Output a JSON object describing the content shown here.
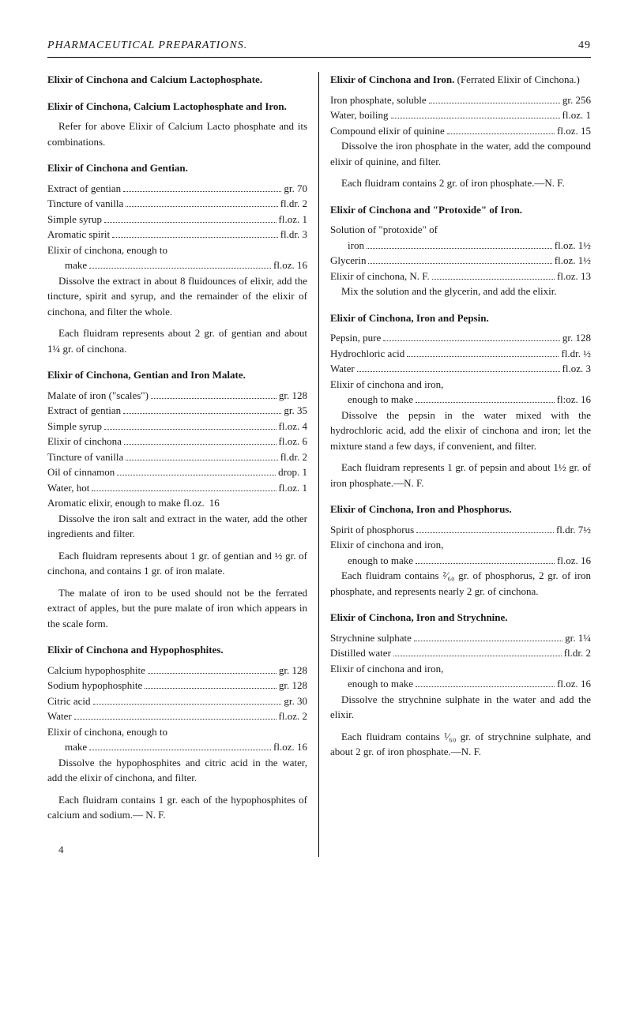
{
  "header": {
    "title": "PHARMACEUTICAL PREPARATIONS.",
    "page_number": "49"
  },
  "left": {
    "s1": {
      "title": "Elixir of Cinchona and Calcium Lactophosphate.",
      "sub": "Elixir of Cinchona, Calcium Lactophosphate and Iron.",
      "p1": "Refer for above Elixir of Calcium Lacto phosphate and its combinations."
    },
    "s2": {
      "title": "Elixir of Cinchona and Gentian.",
      "i": [
        {
          "l": "Extract of gentian",
          "a": "gr. 70"
        },
        {
          "l": "Tincture of vanilla",
          "a": "fl.dr. 2"
        },
        {
          "l": "Simple syrup",
          "a": "fl.oz. 1"
        },
        {
          "l": "Aromatic spirit",
          "a": "fl.dr. 3"
        },
        {
          "l": "Elixir of cinchona, enough to",
          "a": ""
        },
        {
          "l": "make",
          "a": "fl.oz. 16"
        }
      ],
      "p1": "Dissolve the extract in about 8 fluidounces of elixir, add the tincture, spirit and syrup, and the remainder of the elixir of cinchona, and filter the whole.",
      "p2": "Each fluidram represents about 2 gr. of gentian and about 1¼ gr. of cinchona."
    },
    "s3": {
      "title": "Elixir of Cinchona, Gentian and Iron Malate.",
      "i": [
        {
          "l": "Malate of iron (\"scales\")",
          "a": "gr. 128"
        },
        {
          "l": "Extract of gentian",
          "a": "gr. 35"
        },
        {
          "l": "Simple syrup",
          "a": "fl.oz. 4"
        },
        {
          "l": "Elixir of cinchona",
          "a": "fl.oz. 6"
        },
        {
          "l": "Tincture of vanilla",
          "a": "fl.dr. 2"
        },
        {
          "l": "Oil of cinnamon",
          "a": "drop. 1"
        },
        {
          "l": "Water, hot",
          "a": "fl.oz. 1"
        },
        {
          "l": "Aromatic elixir, enough to make fl.oz.",
          "a": "16"
        }
      ],
      "p1": "Dissolve the iron salt and extract in the water, add the other ingredients and filter.",
      "p2": "Each fluidram represents about 1 gr. of gentian and ½ gr. of cinchona, and contains 1 gr. of iron malate.",
      "p3": "The malate of iron to be used should not be the ferrated extract of apples, but the pure malate of iron which appears in the scale form."
    },
    "s4": {
      "title": "Elixir of Cinchona and Hypophosphites.",
      "i": [
        {
          "l": "Calcium hypophosphite",
          "a": "gr. 128"
        },
        {
          "l": "Sodium hypophosphite",
          "a": "gr. 128"
        },
        {
          "l": "Citric acid",
          "a": "gr. 30"
        },
        {
          "l": "Water",
          "a": "fl.oz. 2"
        },
        {
          "l": "Elixir of cinchona, enough to",
          "a": ""
        },
        {
          "l": "make",
          "a": "fl.oz. 16"
        }
      ],
      "p1": "Dissolve the hypophosphites and citric acid in the water, add the elixir of cinchona, and filter.",
      "p2": "Each fluidram contains 1 gr. each of the hypophosphites of calcium and sodium.— N. F.",
      "sig": "4"
    }
  },
  "right": {
    "s1": {
      "title_a": "Elixir of Cinchona and Iron.",
      "title_b": "(Ferrated Elixir of Cinchona.)",
      "i": [
        {
          "l": "Iron phosphate, soluble",
          "a": "gr. 256"
        },
        {
          "l": "Water, boiling",
          "a": "fl.oz. 1"
        },
        {
          "l": "Compound elixir of quinine",
          "a": "fl.oz. 15"
        }
      ],
      "p1": "Dissolve the iron phosphate in the water, add the compound elixir of quinine, and filter.",
      "p2": "Each fluidram contains 2 gr. of iron phosphate.—N. F."
    },
    "s2": {
      "title": "Elixir of Cinchona and \"Protoxide\" of Iron.",
      "i": [
        {
          "l": "Solution of \"protoxide\" of",
          "a": ""
        },
        {
          "l": "iron",
          "a": "fl.oz. 1½"
        },
        {
          "l": "Glycerin",
          "a": "fl.oz. 1½"
        },
        {
          "l": "Elixir of cinchona, N. F.",
          "a": "fl.oz. 13"
        }
      ],
      "p1": "Mix the solution and the glycerin, and add the elixir."
    },
    "s3": {
      "title": "Elixir of Cinchona, Iron and Pepsin.",
      "i": [
        {
          "l": "Pepsin, pure",
          "a": "gr. 128"
        },
        {
          "l": "Hydrochloric acid",
          "a": "fl.dr. ½"
        },
        {
          "l": "Water",
          "a": "fl.oz. 3"
        },
        {
          "l": "Elixir of cinchona and iron,",
          "a": ""
        },
        {
          "l": "enough to make",
          "a": "fl:oz. 16"
        }
      ],
      "p1": "Dissolve the pepsin in the water mixed with the hydrochloric acid, add the elixir of cinchona and iron; let the mixture stand a few days, if convenient, and filter.",
      "p2": "Each fluidram represents 1 gr. of pepsin and about 1½ gr. of iron phosphate.—N. F."
    },
    "s4": {
      "title": "Elixir of Cinchona, Iron and Phosphorus.",
      "i": [
        {
          "l": "Spirit of phosphorus",
          "a": "fl.dr. 7½"
        },
        {
          "l": "Elixir of cinchona and iron,",
          "a": ""
        },
        {
          "l": "enough to make",
          "a": "fl.oz. 16"
        }
      ],
      "p1": "Each fluidram contains ²⁄₆₀ gr. of phosphorus, 2 gr. of iron phosphate, and represents nearly 2 gr. of cinchona."
    },
    "s5": {
      "title": "Elixir of Cinchona, Iron and Strychnine.",
      "i": [
        {
          "l": "Strychnine sulphate",
          "a": "gr. 1¼"
        },
        {
          "l": "Distilled water",
          "a": "fl.dr. 2"
        },
        {
          "l": "Elixir of cinchona and iron,",
          "a": ""
        },
        {
          "l": "enough to make",
          "a": "fl.oz. 16"
        }
      ],
      "p1": "Dissolve the strychnine sulphate in the water and add the elixir.",
      "p2": "Each fluidram contains ¹⁄₆₀ gr. of strychnine sulphate, and about 2 gr. of iron phosphate.—N. F."
    }
  }
}
